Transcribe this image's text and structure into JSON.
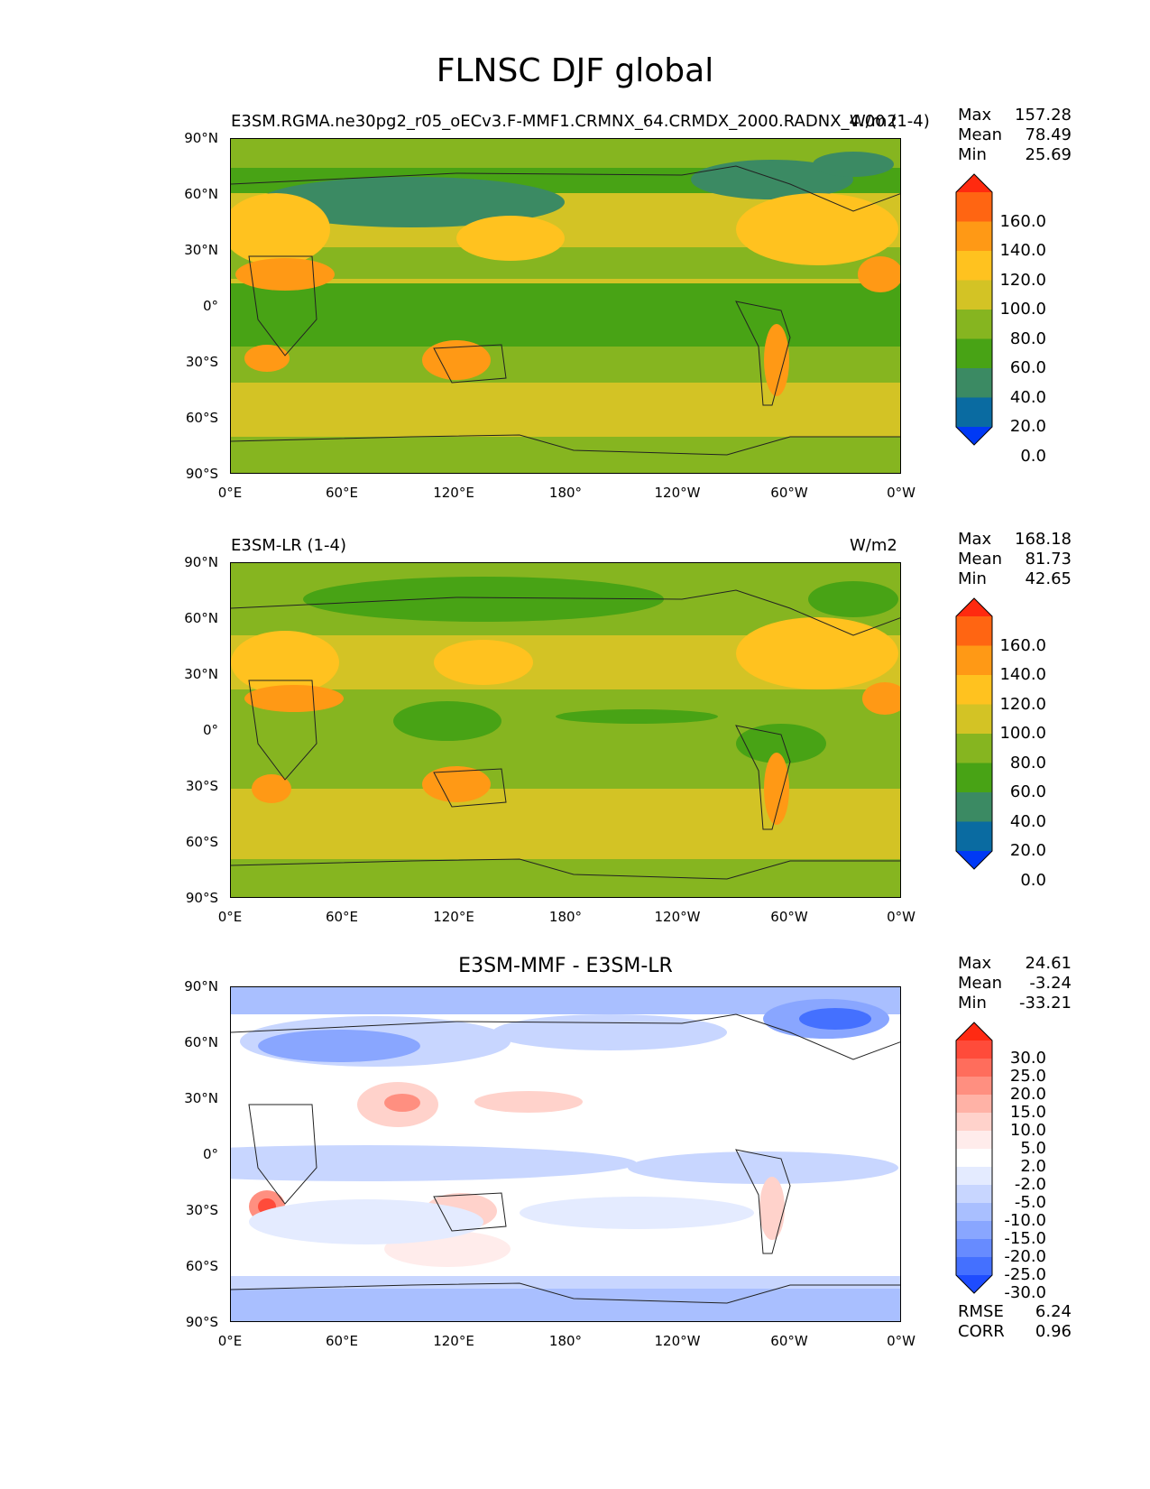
{
  "figure_title": "FLNSC DJF global",
  "chart_data": [
    {
      "type": "heatmap",
      "title": "E3SM.RGMA.ne30pg2_r05_oECv3.F-MMF1.CRMNX_64.CRMDX_2000.RADNX_4.00 (1-4)",
      "units": "W/m2",
      "stats": {
        "max": "157.28",
        "mean": "78.49",
        "min": "25.69"
      },
      "lat_ticks": [
        "90°N",
        "60°N",
        "30°N",
        "0°",
        "30°S",
        "60°S",
        "90°S"
      ],
      "lon_ticks": [
        "0°E",
        "60°E",
        "120°E",
        "180°",
        "120°W",
        "60°W",
        "0°W"
      ],
      "colorbar_levels": [
        "160.0",
        "140.0",
        "120.0",
        "100.0",
        "80.0",
        "60.0",
        "40.0",
        "20.0",
        "0.0"
      ],
      "colorbar_colors": [
        "#ff2a0f",
        "#ff6512",
        "#ff9915",
        "#ffc21f",
        "#d3c325",
        "#86b520",
        "#48a315",
        "#3b8a63",
        "#0a6ba1",
        "#0039f5"
      ]
    },
    {
      "type": "heatmap",
      "title": "E3SM-LR (1-4)",
      "units": "W/m2",
      "stats": {
        "max": "168.18",
        "mean": "81.73",
        "min": "42.65"
      },
      "lat_ticks": [
        "90°N",
        "60°N",
        "30°N",
        "0°",
        "30°S",
        "60°S",
        "90°S"
      ],
      "lon_ticks": [
        "0°E",
        "60°E",
        "120°E",
        "180°",
        "120°W",
        "60°W",
        "0°W"
      ],
      "colorbar_levels": [
        "160.0",
        "140.0",
        "120.0",
        "100.0",
        "80.0",
        "60.0",
        "40.0",
        "20.0",
        "0.0"
      ],
      "colorbar_colors": [
        "#ff2a0f",
        "#ff6512",
        "#ff9915",
        "#ffc21f",
        "#d3c325",
        "#86b520",
        "#48a315",
        "#3b8a63",
        "#0a6ba1",
        "#0039f5"
      ]
    },
    {
      "type": "heatmap",
      "title": "E3SM-MMF - E3SM-LR",
      "units": "",
      "stats": {
        "max": "24.61",
        "mean": "-3.24",
        "min": "-33.21"
      },
      "metrics": {
        "rmse": "6.24",
        "corr": "0.96"
      },
      "lat_ticks": [
        "90°N",
        "60°N",
        "30°N",
        "0°",
        "30°S",
        "60°S",
        "90°S"
      ],
      "lon_ticks": [
        "0°E",
        "60°E",
        "120°E",
        "180°",
        "120°W",
        "60°W",
        "0°W"
      ],
      "colorbar_levels": [
        "30.0",
        "25.0",
        "20.0",
        "15.0",
        "10.0",
        "5.0",
        "2.0",
        "-2.0",
        "-5.0",
        "-10.0",
        "-15.0",
        "-20.0",
        "-25.0",
        "-30.0"
      ],
      "colorbar_colors": [
        "#ff2a12",
        "#ff4b3a",
        "#ff6d5c",
        "#ff8f80",
        "#ffb2a6",
        "#ffd2cb",
        "#ffeceb",
        "#ffffff",
        "#e4ebff",
        "#c8d6ff",
        "#a9bfff",
        "#89a6ff",
        "#678bff",
        "#4470ff",
        "#1e4cff"
      ]
    }
  ],
  "labels": {
    "max": "Max",
    "mean": "Mean",
    "min": "Min",
    "rmse": "RMSE",
    "corr": "CORR"
  }
}
